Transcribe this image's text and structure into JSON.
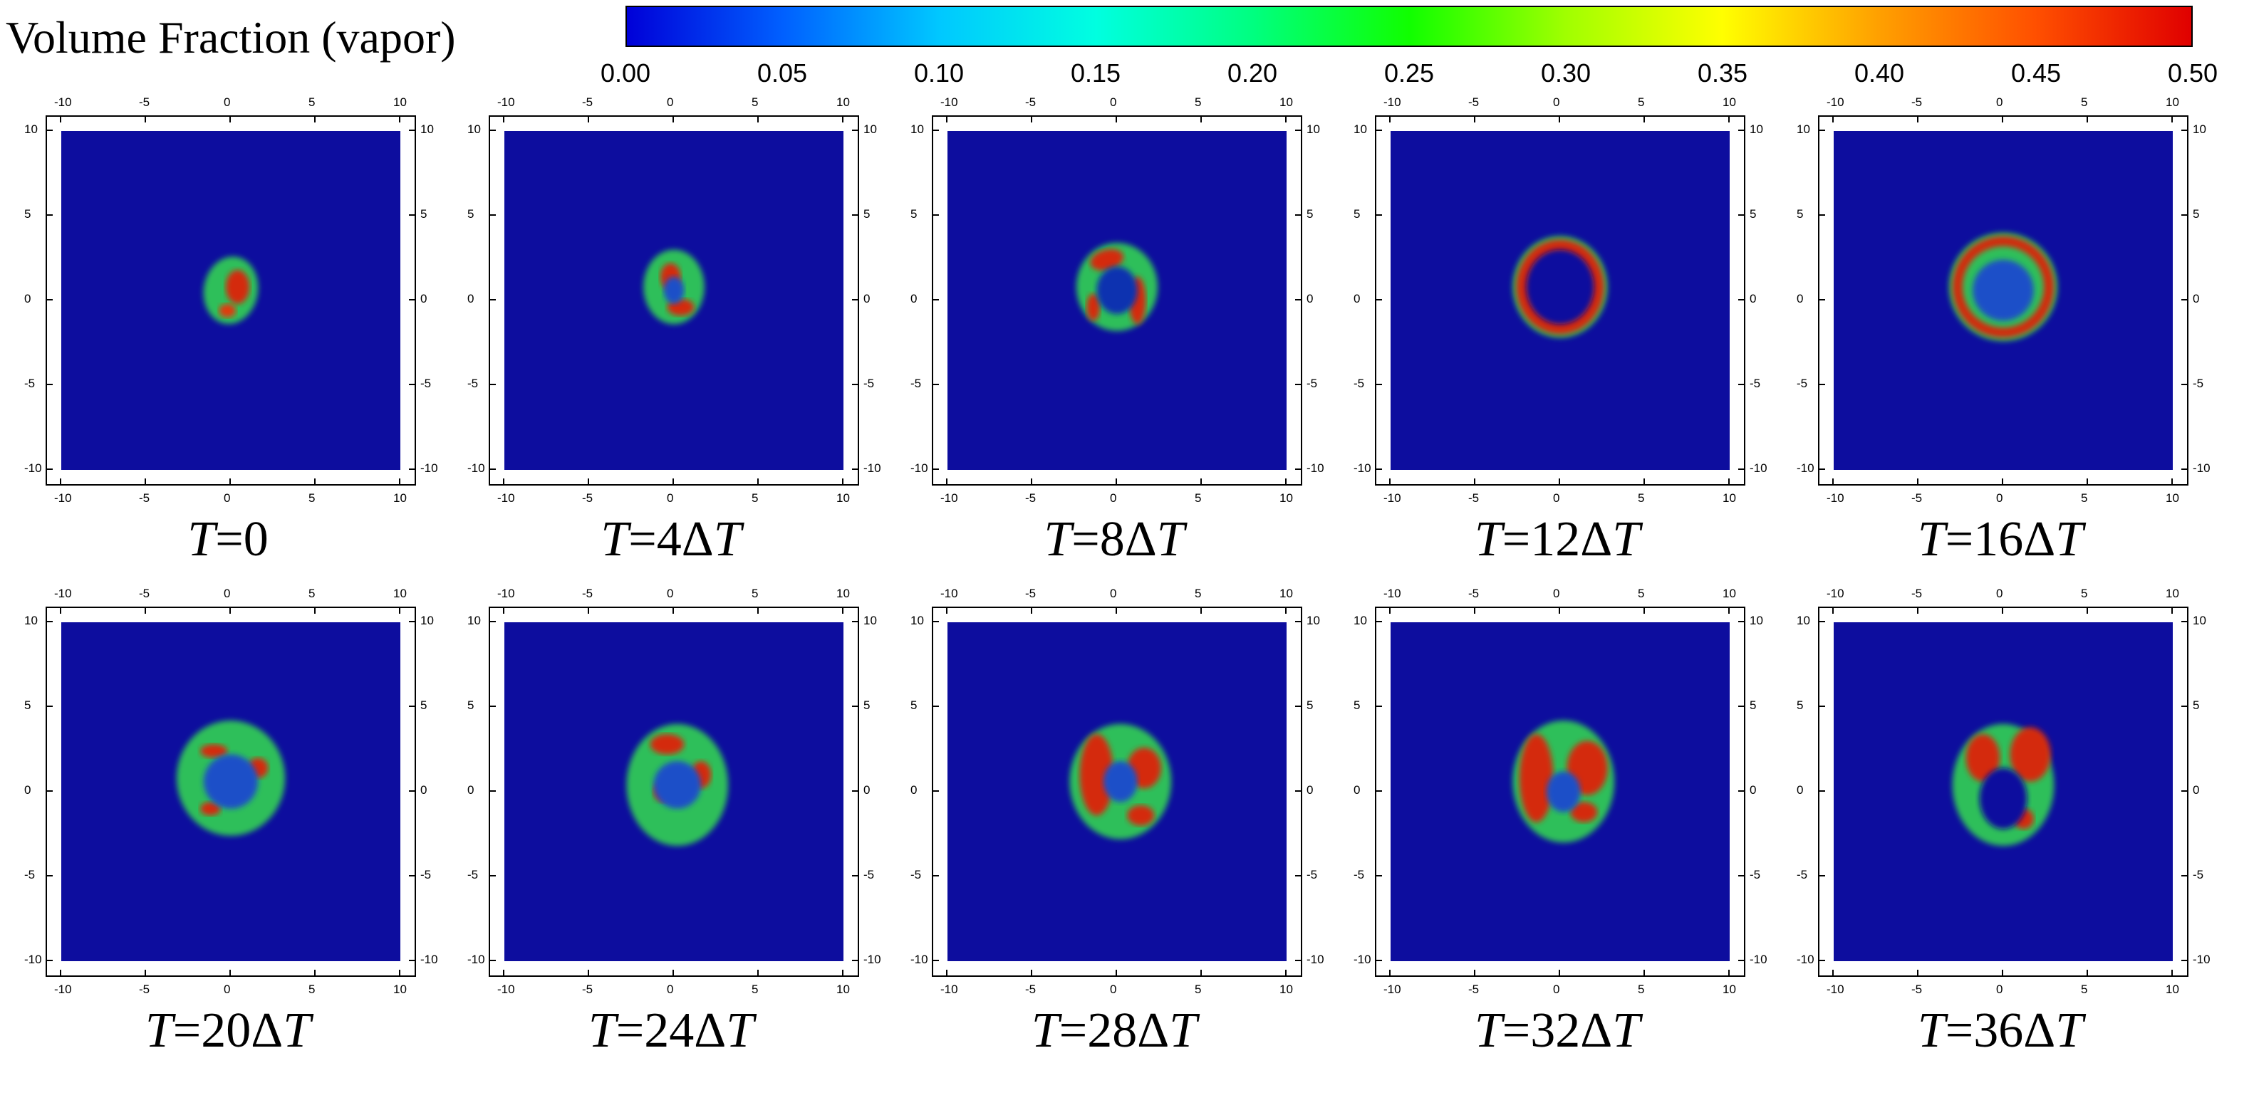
{
  "colorbar": {
    "title": "Volume Fraction (vapor)",
    "ticks": [
      "0.00",
      "0.05",
      "0.10",
      "0.15",
      "0.20",
      "0.25",
      "0.30",
      "0.35",
      "0.40",
      "0.45",
      "0.50"
    ],
    "colors": [
      "#0000d8",
      "#0060ff",
      "#00c8ff",
      "#00ffe0",
      "#00ff80",
      "#10ff00",
      "#a0ff00",
      "#ffff00",
      "#ffa000",
      "#ff5000",
      "#e00000"
    ]
  },
  "chart_data": [
    {
      "type": "heatmap",
      "caption_var": "T",
      "caption_eq": "=",
      "caption_val": "0",
      "axis_ticks": [
        "-10",
        "-5",
        "0",
        "5",
        "10"
      ],
      "xlim": [
        -10,
        10
      ],
      "ylim": [
        -10,
        10
      ]
    },
    {
      "type": "heatmap",
      "caption_var": "T",
      "caption_eq": "=",
      "caption_val": "4ΔT",
      "axis_ticks": [
        "-10",
        "-5",
        "0",
        "5",
        "10"
      ],
      "xlim": [
        -10,
        10
      ],
      "ylim": [
        -10,
        10
      ]
    },
    {
      "type": "heatmap",
      "caption_var": "T",
      "caption_eq": "=",
      "caption_val": "8ΔT",
      "axis_ticks": [
        "-10",
        "-5",
        "0",
        "5",
        "10"
      ],
      "xlim": [
        -10,
        10
      ],
      "ylim": [
        -10,
        10
      ]
    },
    {
      "type": "heatmap",
      "caption_var": "T",
      "caption_eq": "=",
      "caption_val": "12ΔT",
      "axis_ticks": [
        "-10",
        "-5",
        "0",
        "5",
        "10"
      ],
      "xlim": [
        -10,
        10
      ],
      "ylim": [
        -10,
        10
      ]
    },
    {
      "type": "heatmap",
      "caption_var": "T",
      "caption_eq": "=",
      "caption_val": "16ΔT",
      "axis_ticks": [
        "-10",
        "-5",
        "0",
        "5",
        "10"
      ],
      "xlim": [
        -10,
        10
      ],
      "ylim": [
        -10,
        10
      ]
    },
    {
      "type": "heatmap",
      "caption_var": "T",
      "caption_eq": "=",
      "caption_val": "20ΔT",
      "axis_ticks": [
        "-10",
        "-5",
        "0",
        "5",
        "10"
      ],
      "xlim": [
        -10,
        10
      ],
      "ylim": [
        -10,
        10
      ]
    },
    {
      "type": "heatmap",
      "caption_var": "T",
      "caption_eq": "=",
      "caption_val": "24ΔT",
      "axis_ticks": [
        "-10",
        "-5",
        "0",
        "5",
        "10"
      ],
      "xlim": [
        -10,
        10
      ],
      "ylim": [
        -10,
        10
      ]
    },
    {
      "type": "heatmap",
      "caption_var": "T",
      "caption_eq": "=",
      "caption_val": "28ΔT",
      "axis_ticks": [
        "-10",
        "-5",
        "0",
        "5",
        "10"
      ],
      "xlim": [
        -10,
        10
      ],
      "ylim": [
        -10,
        10
      ]
    },
    {
      "type": "heatmap",
      "caption_var": "T",
      "caption_eq": "=",
      "caption_val": "32ΔT",
      "axis_ticks": [
        "-10",
        "-5",
        "0",
        "5",
        "10"
      ],
      "xlim": [
        -10,
        10
      ],
      "ylim": [
        -10,
        10
      ]
    },
    {
      "type": "heatmap",
      "caption_var": "T",
      "caption_eq": "=",
      "caption_val": "36ΔT",
      "axis_ticks": [
        "-10",
        "-5",
        "0",
        "5",
        "10"
      ],
      "xlim": [
        -10,
        10
      ],
      "ylim": [
        -10,
        10
      ]
    }
  ]
}
